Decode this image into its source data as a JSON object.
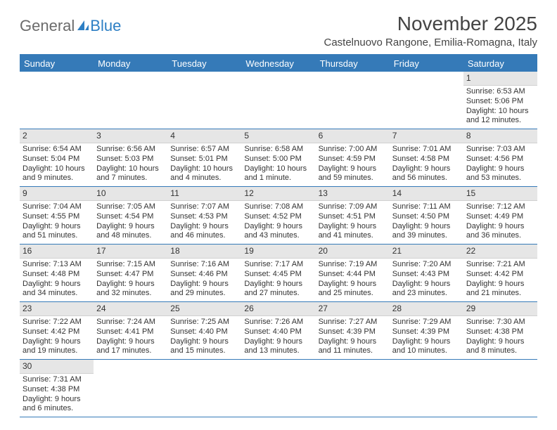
{
  "logo": {
    "text1": "General",
    "text2": "Blue"
  },
  "title": "November 2025",
  "subtitle": "Castelnuovo Rangone, Emilia-Romagna, Italy",
  "day_headers": [
    "Sunday",
    "Monday",
    "Tuesday",
    "Wednesday",
    "Thursday",
    "Friday",
    "Saturday"
  ],
  "colors": {
    "header_bg": "#357ab8",
    "daynum_bg": "#e6e6e6",
    "border": "#357ab8"
  },
  "weeks": [
    [
      null,
      null,
      null,
      null,
      null,
      null,
      {
        "n": "1",
        "sr": "Sunrise: 6:53 AM",
        "ss": "Sunset: 5:06 PM",
        "dl": "Daylight: 10 hours and 12 minutes."
      }
    ],
    [
      {
        "n": "2",
        "sr": "Sunrise: 6:54 AM",
        "ss": "Sunset: 5:04 PM",
        "dl": "Daylight: 10 hours and 9 minutes."
      },
      {
        "n": "3",
        "sr": "Sunrise: 6:56 AM",
        "ss": "Sunset: 5:03 PM",
        "dl": "Daylight: 10 hours and 7 minutes."
      },
      {
        "n": "4",
        "sr": "Sunrise: 6:57 AM",
        "ss": "Sunset: 5:01 PM",
        "dl": "Daylight: 10 hours and 4 minutes."
      },
      {
        "n": "5",
        "sr": "Sunrise: 6:58 AM",
        "ss": "Sunset: 5:00 PM",
        "dl": "Daylight: 10 hours and 1 minute."
      },
      {
        "n": "6",
        "sr": "Sunrise: 7:00 AM",
        "ss": "Sunset: 4:59 PM",
        "dl": "Daylight: 9 hours and 59 minutes."
      },
      {
        "n": "7",
        "sr": "Sunrise: 7:01 AM",
        "ss": "Sunset: 4:58 PM",
        "dl": "Daylight: 9 hours and 56 minutes."
      },
      {
        "n": "8",
        "sr": "Sunrise: 7:03 AM",
        "ss": "Sunset: 4:56 PM",
        "dl": "Daylight: 9 hours and 53 minutes."
      }
    ],
    [
      {
        "n": "9",
        "sr": "Sunrise: 7:04 AM",
        "ss": "Sunset: 4:55 PM",
        "dl": "Daylight: 9 hours and 51 minutes."
      },
      {
        "n": "10",
        "sr": "Sunrise: 7:05 AM",
        "ss": "Sunset: 4:54 PM",
        "dl": "Daylight: 9 hours and 48 minutes."
      },
      {
        "n": "11",
        "sr": "Sunrise: 7:07 AM",
        "ss": "Sunset: 4:53 PM",
        "dl": "Daylight: 9 hours and 46 minutes."
      },
      {
        "n": "12",
        "sr": "Sunrise: 7:08 AM",
        "ss": "Sunset: 4:52 PM",
        "dl": "Daylight: 9 hours and 43 minutes."
      },
      {
        "n": "13",
        "sr": "Sunrise: 7:09 AM",
        "ss": "Sunset: 4:51 PM",
        "dl": "Daylight: 9 hours and 41 minutes."
      },
      {
        "n": "14",
        "sr": "Sunrise: 7:11 AM",
        "ss": "Sunset: 4:50 PM",
        "dl": "Daylight: 9 hours and 39 minutes."
      },
      {
        "n": "15",
        "sr": "Sunrise: 7:12 AM",
        "ss": "Sunset: 4:49 PM",
        "dl": "Daylight: 9 hours and 36 minutes."
      }
    ],
    [
      {
        "n": "16",
        "sr": "Sunrise: 7:13 AM",
        "ss": "Sunset: 4:48 PM",
        "dl": "Daylight: 9 hours and 34 minutes."
      },
      {
        "n": "17",
        "sr": "Sunrise: 7:15 AM",
        "ss": "Sunset: 4:47 PM",
        "dl": "Daylight: 9 hours and 32 minutes."
      },
      {
        "n": "18",
        "sr": "Sunrise: 7:16 AM",
        "ss": "Sunset: 4:46 PM",
        "dl": "Daylight: 9 hours and 29 minutes."
      },
      {
        "n": "19",
        "sr": "Sunrise: 7:17 AM",
        "ss": "Sunset: 4:45 PM",
        "dl": "Daylight: 9 hours and 27 minutes."
      },
      {
        "n": "20",
        "sr": "Sunrise: 7:19 AM",
        "ss": "Sunset: 4:44 PM",
        "dl": "Daylight: 9 hours and 25 minutes."
      },
      {
        "n": "21",
        "sr": "Sunrise: 7:20 AM",
        "ss": "Sunset: 4:43 PM",
        "dl": "Daylight: 9 hours and 23 minutes."
      },
      {
        "n": "22",
        "sr": "Sunrise: 7:21 AM",
        "ss": "Sunset: 4:42 PM",
        "dl": "Daylight: 9 hours and 21 minutes."
      }
    ],
    [
      {
        "n": "23",
        "sr": "Sunrise: 7:22 AM",
        "ss": "Sunset: 4:42 PM",
        "dl": "Daylight: 9 hours and 19 minutes."
      },
      {
        "n": "24",
        "sr": "Sunrise: 7:24 AM",
        "ss": "Sunset: 4:41 PM",
        "dl": "Daylight: 9 hours and 17 minutes."
      },
      {
        "n": "25",
        "sr": "Sunrise: 7:25 AM",
        "ss": "Sunset: 4:40 PM",
        "dl": "Daylight: 9 hours and 15 minutes."
      },
      {
        "n": "26",
        "sr": "Sunrise: 7:26 AM",
        "ss": "Sunset: 4:40 PM",
        "dl": "Daylight: 9 hours and 13 minutes."
      },
      {
        "n": "27",
        "sr": "Sunrise: 7:27 AM",
        "ss": "Sunset: 4:39 PM",
        "dl": "Daylight: 9 hours and 11 minutes."
      },
      {
        "n": "28",
        "sr": "Sunrise: 7:29 AM",
        "ss": "Sunset: 4:39 PM",
        "dl": "Daylight: 9 hours and 10 minutes."
      },
      {
        "n": "29",
        "sr": "Sunrise: 7:30 AM",
        "ss": "Sunset: 4:38 PM",
        "dl": "Daylight: 9 hours and 8 minutes."
      }
    ],
    [
      {
        "n": "30",
        "sr": "Sunrise: 7:31 AM",
        "ss": "Sunset: 4:38 PM",
        "dl": "Daylight: 9 hours and 6 minutes."
      },
      null,
      null,
      null,
      null,
      null,
      null
    ]
  ]
}
